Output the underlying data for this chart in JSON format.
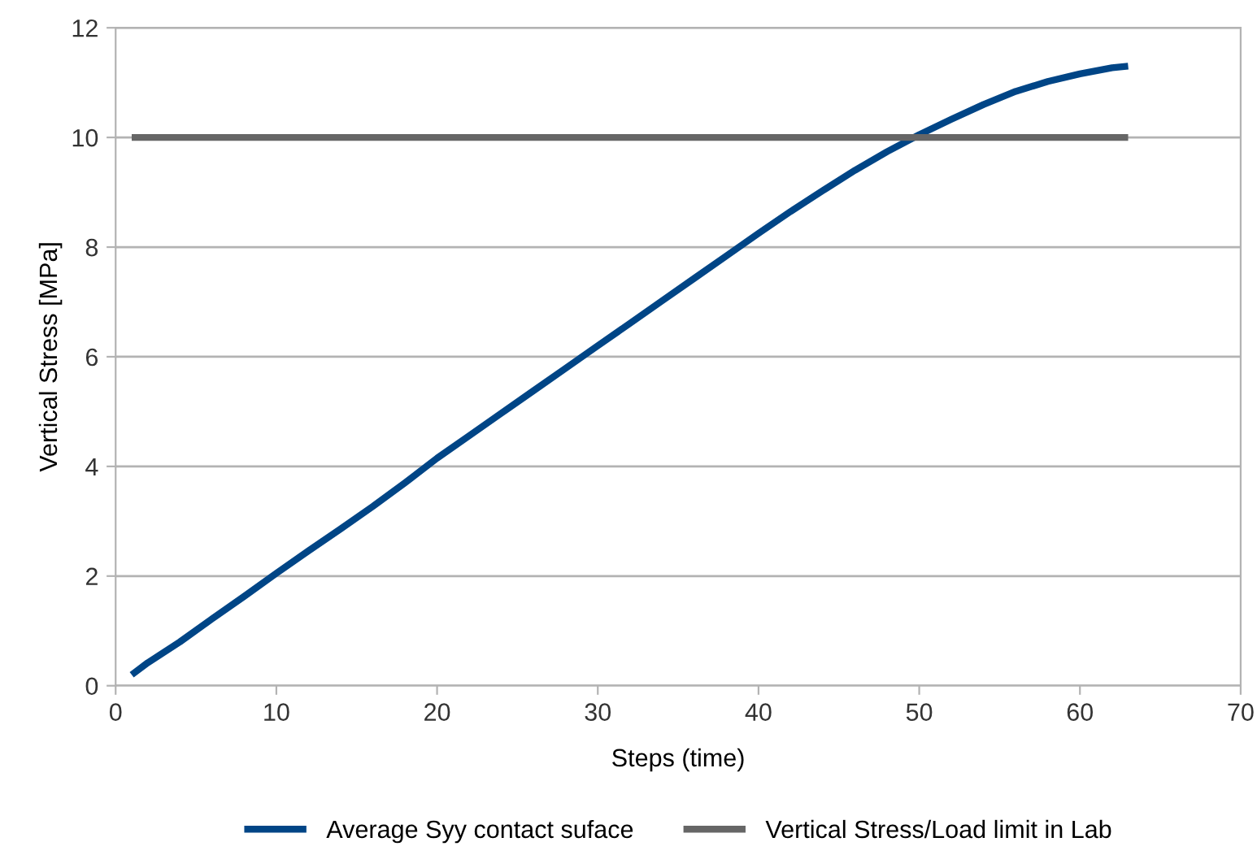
{
  "chart_data": {
    "type": "line",
    "xlabel": "Steps (time)",
    "ylabel": "Vertical Stress [MPa]",
    "xlim": [
      0,
      70
    ],
    "xticks": [
      0,
      10,
      20,
      30,
      40,
      50,
      60,
      70
    ],
    "ylim": [
      0,
      12
    ],
    "yticks": [
      0,
      2,
      4,
      6,
      8,
      10,
      12
    ],
    "grid": "y",
    "legend": "bottom",
    "marker": "none",
    "line_style": "solid",
    "series": [
      {
        "name": "Average Syy contact suface",
        "color": "#004586",
        "x": [
          1,
          2,
          4,
          6,
          8,
          10,
          12,
          14,
          16,
          18,
          20,
          22,
          24,
          26,
          28,
          30,
          32,
          34,
          36,
          38,
          40,
          42,
          44,
          46,
          48,
          50,
          52,
          54,
          56,
          58,
          60,
          62,
          63
        ],
        "values": [
          0.2,
          0.42,
          0.8,
          1.22,
          1.63,
          2.05,
          2.46,
          2.86,
          3.27,
          3.7,
          4.15,
          4.56,
          4.97,
          5.38,
          5.79,
          6.2,
          6.61,
          7.02,
          7.43,
          7.84,
          8.25,
          8.65,
          9.03,
          9.4,
          9.74,
          10.05,
          10.33,
          10.6,
          10.84,
          11.02,
          11.16,
          11.27,
          11.3
        ]
      },
      {
        "name": "Vertical Stress/Load limit in Lab",
        "color": "#666666",
        "x": [
          1,
          63
        ],
        "values": [
          10,
          10
        ]
      }
    ]
  }
}
